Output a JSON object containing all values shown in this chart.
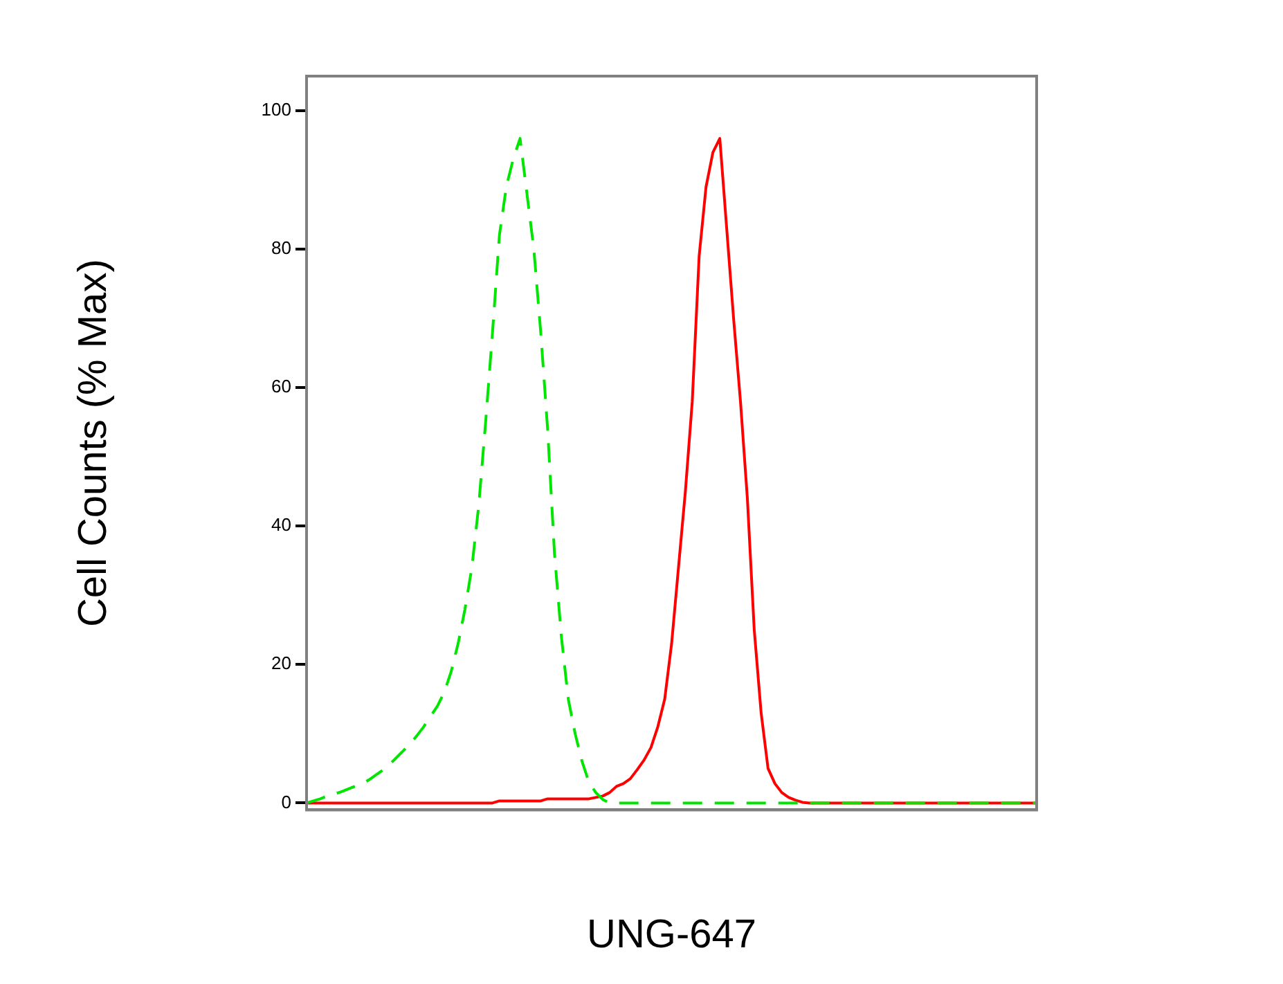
{
  "chart_data": {
    "type": "line",
    "xlabel": "UNG-647",
    "ylabel": "Cell Counts (% Max)",
    "categories": [
      null,
      null,
      null,
      null,
      null,
      null,
      null,
      null,
      null,
      null,
      null,
      null,
      null,
      null,
      null,
      null,
      null,
      null,
      null,
      null,
      null,
      null,
      null,
      null,
      null,
      null,
      null,
      null,
      null,
      null,
      null,
      null,
      null,
      null,
      null,
      null,
      null,
      null,
      null,
      null,
      null,
      null,
      null,
      null,
      null,
      null,
      null,
      null,
      null,
      null,
      null,
      null,
      null,
      null,
      null,
      null,
      null,
      null,
      null,
      null,
      null,
      null,
      null,
      null,
      null,
      null,
      null,
      null,
      null,
      null,
      null,
      null,
      null,
      null,
      null,
      null,
      null,
      null,
      null,
      null,
      null,
      null,
      null,
      null,
      null,
      null,
      null,
      null,
      null,
      null,
      null,
      null,
      null,
      null,
      null,
      null,
      null,
      null,
      null,
      null,
      null,
      null,
      null,
      null,
      null,
      null,
      null
    ],
    "series": [
      {
        "color": "#00e600",
        "line_style": "dashed",
        "values": [
          0,
          0.3,
          0.6,
          1,
          1.3,
          1.6,
          2,
          2.4,
          2.8,
          3.3,
          4,
          4.7,
          5.5,
          6.5,
          7.5,
          8.5,
          9.7,
          11,
          12.5,
          14,
          16,
          19,
          23,
          28,
          34,
          43,
          55,
          68,
          82,
          89,
          93,
          96,
          88,
          80,
          68,
          54,
          36,
          24,
          15,
          10,
          6,
          3,
          1.5,
          0.5,
          0,
          0,
          0,
          0,
          0,
          0,
          0,
          0,
          0,
          0,
          0,
          0,
          0,
          0,
          0,
          0,
          0,
          0,
          0,
          0,
          0,
          0,
          0,
          0,
          0,
          0,
          0,
          0,
          0,
          0,
          0,
          0,
          0,
          0,
          0,
          0,
          0,
          0,
          0,
          0,
          0,
          0,
          0,
          0,
          0,
          0,
          0,
          0,
          0,
          0,
          0,
          0,
          0,
          0,
          0,
          0,
          0,
          0,
          0,
          0,
          0,
          0,
          0
        ]
      },
      {
        "color": "#ff0000",
        "line_style": "solid",
        "values": [
          0,
          0,
          0,
          0,
          0,
          0,
          0,
          0,
          0,
          0,
          0,
          0,
          0,
          0,
          0,
          0,
          0,
          0,
          0,
          0,
          0,
          0,
          0,
          0,
          0,
          0,
          0,
          0,
          0.3,
          0.3,
          0.3,
          0.3,
          0.3,
          0.3,
          0.3,
          0.6,
          0.6,
          0.6,
          0.6,
          0.6,
          0.6,
          0.6,
          0.8,
          1,
          1.5,
          2.4,
          2.8,
          3.5,
          4.8,
          6.2,
          8,
          11,
          15,
          23,
          34,
          45,
          58,
          79,
          89,
          94,
          96,
          83,
          70,
          58,
          44,
          25,
          13,
          5,
          2.8,
          1.5,
          0.8,
          0.4,
          0.1,
          0,
          0,
          0,
          0,
          0,
          0,
          0,
          0,
          0,
          0,
          0,
          0,
          0,
          0,
          0,
          0,
          0,
          0,
          0,
          0,
          0,
          0,
          0,
          0,
          0,
          0,
          0,
          0,
          0,
          0,
          0,
          0,
          0,
          0
        ]
      }
    ],
    "ylim": [
      -1,
      105
    ],
    "yticks": [
      0,
      20,
      40,
      60,
      80,
      100
    ],
    "marker": "none",
    "grid": false,
    "legend": false,
    "tick_labels": "y"
  }
}
